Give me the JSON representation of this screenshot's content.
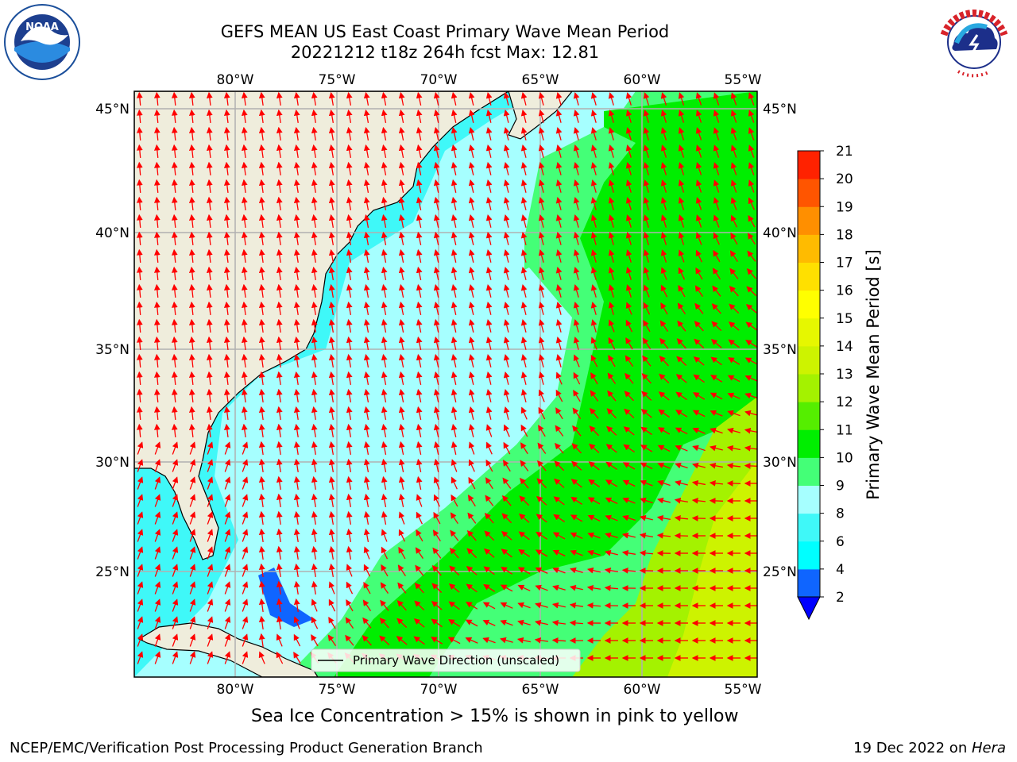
{
  "title_line1": "GEFS MEAN US East Coast Primary Wave Mean Period",
  "title_line2": "20221212 t18z 264h fcst   Max: 12.81",
  "logos": {
    "left": "noaa-logo",
    "right": "nws-logo"
  },
  "map": {
    "lon_ticks_top": [
      "80°W",
      "75°W",
      "70°W",
      "65°W",
      "60°W",
      "55°W"
    ],
    "lon_ticks_bottom": [
      "80°W",
      "75°W",
      "70°W",
      "65°W",
      "60°W",
      "55°W"
    ],
    "lat_ticks_left": [
      "45°N",
      "40°N",
      "35°N",
      "30°N",
      "25°N"
    ],
    "lat_ticks_right": [
      "45°N",
      "40°N",
      "35°N",
      "30°N",
      "25°N"
    ],
    "legend_label": "Primary Wave Direction (unscaled)",
    "arrow_color": "#ff0000",
    "land_color": "#efeddc"
  },
  "colorbar": {
    "label": "Primary Wave Mean Period [s]",
    "ticks": [
      "2",
      "4",
      "6",
      "8",
      "9",
      "10",
      "11",
      "12",
      "13",
      "14",
      "15",
      "16",
      "17",
      "18",
      "19",
      "20",
      "21"
    ],
    "colors": [
      "#0f65ff",
      "#00ffff",
      "#3ff8f8",
      "#a6ffff",
      "#44ff77",
      "#00ee00",
      "#55ee00",
      "#a4f200",
      "#cdf300",
      "#e6f700",
      "#ffff00",
      "#ffe000",
      "#ffbb00",
      "#ff8f00",
      "#ff5500",
      "#ff2200",
      "#ff0000"
    ],
    "extend_color": "#0000ff"
  },
  "caption": "Sea Ice Concentration > 15% is shown in pink to yellow",
  "footer": {
    "left": "NCEP/EMC/Verification Post Processing Product Generation Branch",
    "right_date": "19 Dec 2022 on ",
    "right_host": "Hera"
  }
}
